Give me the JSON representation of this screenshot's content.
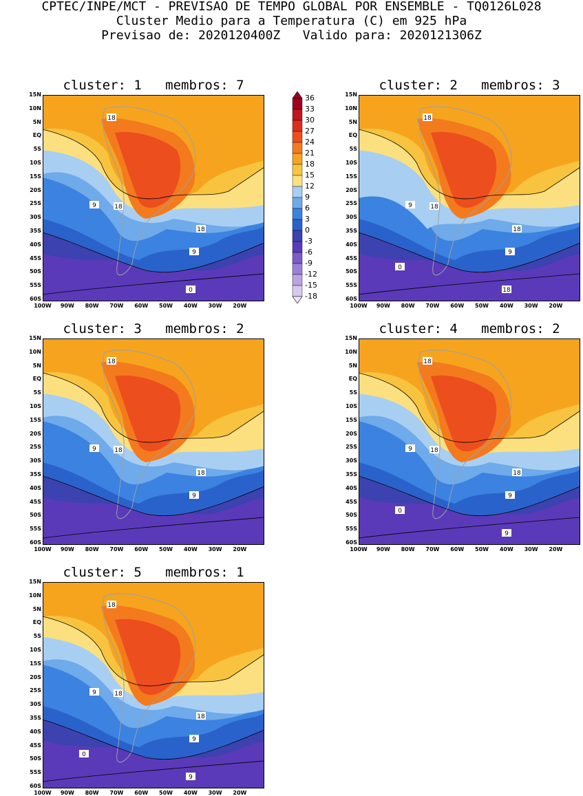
{
  "header": {
    "line1": "CPTEC/INPE/MCT - PREVISAO DE TEMPO GLOBAL POR ENSEMBLE - TQ0126L028",
    "line2": "Cluster Medio para a Temperatura (C) em 925 hPa",
    "line3": "Previsao de: 2020120400Z   Valido para: 2020121306Z"
  },
  "axes": {
    "lat_labels": [
      "15N",
      "10N",
      "5N",
      "EQ",
      "5S",
      "10S",
      "15S",
      "20S",
      "25S",
      "30S",
      "35S",
      "40S",
      "45S",
      "50S",
      "55S",
      "60S"
    ],
    "lon_labels": [
      "100W",
      "90W",
      "80W",
      "70W",
      "60W",
      "50W",
      "40W",
      "30W",
      "20W"
    ]
  },
  "colorbar": {
    "labels": [
      "36",
      "33",
      "30",
      "27",
      "24",
      "21",
      "18",
      "15",
      "12",
      "9",
      "6",
      "3",
      "0",
      "-3",
      "-6",
      "-9",
      "-12",
      "-15",
      "-18"
    ],
    "colors": [
      "#a0001e",
      "#c0161e",
      "#dc2e1e",
      "#ec4e1e",
      "#f47a1e",
      "#f6a41e",
      "#f8c440",
      "#fce080",
      "#a8cff2",
      "#6faaea",
      "#3c82e0",
      "#2a62cc",
      "#3c42b0",
      "#5a3ab8",
      "#7c5ac8",
      "#9a80d6",
      "#b8a4e0",
      "#d6c8ee"
    ]
  },
  "panels": [
    {
      "title": "cluster: 1   membros: 7",
      "labels": [
        "18",
        "18",
        "18",
        "9",
        "9",
        "0"
      ]
    },
    {
      "title": "cluster: 2   membros: 3",
      "labels": [
        "18",
        "18",
        "18",
        "9",
        "9",
        "18",
        "0"
      ]
    },
    {
      "title": "cluster: 3   membros: 2",
      "labels": [
        "18",
        "18",
        "18",
        "9",
        "9"
      ]
    },
    {
      "title": "cluster: 4   membros: 2",
      "labels": [
        "18",
        "18",
        "18",
        "9",
        "9",
        "9",
        "0"
      ]
    },
    {
      "title": "cluster: 5   membros: 1",
      "labels": [
        "18",
        "18",
        "18",
        "9",
        "9",
        "9",
        "0"
      ]
    }
  ]
}
